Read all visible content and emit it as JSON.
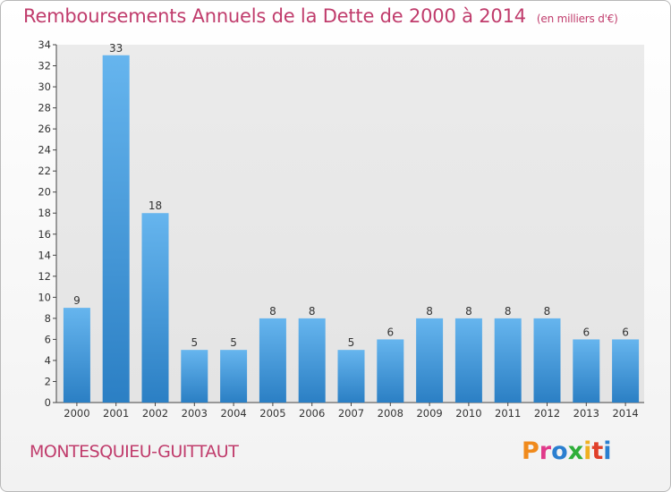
{
  "header": {
    "title": "Remboursements Annuels de la Dette de 2000 à 2014",
    "unit": "(en milliers d'€)"
  },
  "footer": {
    "commune": "MONTESQUIEU-GUITTAUT",
    "logo_letters": [
      "P",
      "r",
      "o",
      "x",
      "i",
      "t",
      "i"
    ],
    "logo_colors": [
      "#f08a1c",
      "#e03a8a",
      "#2a7fd0",
      "#2fae3a",
      "#f0b020",
      "#e0402a",
      "#2a7fd0"
    ]
  },
  "chart_data": {
    "type": "bar",
    "title": "Remboursements Annuels de la Dette de 2000 à 2014",
    "xlabel": "",
    "ylabel": "",
    "categories": [
      "2000",
      "2001",
      "2002",
      "2003",
      "2004",
      "2005",
      "2006",
      "2007",
      "2008",
      "2009",
      "2010",
      "2011",
      "2012",
      "2013",
      "2014"
    ],
    "values": [
      9,
      33,
      18,
      5,
      5,
      8,
      8,
      5,
      6,
      8,
      8,
      8,
      8,
      6,
      6
    ],
    "ylim": [
      0,
      34
    ],
    "yticks": [
      0,
      2,
      4,
      6,
      8,
      10,
      12,
      14,
      16,
      18,
      20,
      22,
      24,
      26,
      28,
      30,
      32,
      34
    ],
    "grid": false,
    "colors": {
      "bar_top": "#66b5ee",
      "bar_bottom": "#2b7fc4",
      "axis": "#444444",
      "background": "#e8e8e8"
    }
  }
}
